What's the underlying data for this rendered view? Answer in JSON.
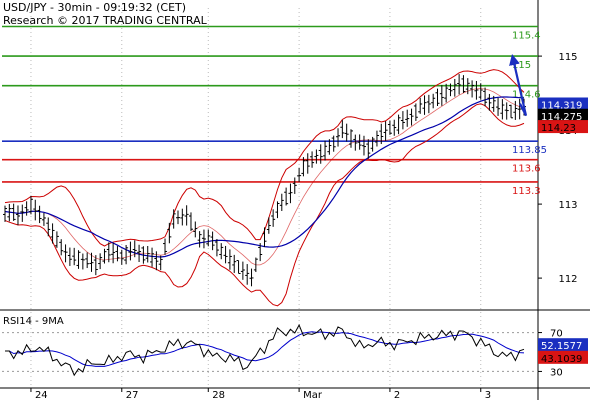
{
  "header": {
    "title": "USD/JPY - 30min - 09:19:32 (CET)",
    "copyright": "Research © 2017 TRADING CENTRAL"
  },
  "rsi_panel": {
    "label": "RSI14 - 9MA"
  },
  "chart_data": [
    {
      "type": "candlestick",
      "instrument": "USD/JPY",
      "timeframe": "30min",
      "ylim": [
        111.65,
        115.65
      ],
      "y_ticks": [
        112,
        113,
        114,
        115
      ],
      "x_tick_labels": [
        "24",
        "27",
        "28",
        "Mar",
        "2",
        "3"
      ],
      "levels": [
        {
          "label": "115.4",
          "value": 115.4,
          "color": "#2c9a1c"
        },
        {
          "label": "115",
          "value": 115.0,
          "color": "#2c9a1c"
        },
        {
          "label": "114.6",
          "value": 114.6,
          "color": "#2c9a1c"
        },
        {
          "label": "113.85",
          "value": 113.85,
          "color": "#1a2fc0"
        },
        {
          "label": "113.6",
          "value": 113.6,
          "color": "#d91414"
        },
        {
          "label": "113.3",
          "value": 113.3,
          "color": "#d91414"
        }
      ],
      "price_tags": [
        {
          "label": "114.319",
          "value": 114.319,
          "bg": "#1a2fc0",
          "fg": "#ffffff"
        },
        {
          "label": "114.275",
          "value": 114.275,
          "bg": "#000000",
          "fg": "#ffffff"
        },
        {
          "label": "114.23",
          "value": 114.23,
          "bg": "#d91414",
          "fg": "#000000"
        }
      ],
      "price_path": [
        [
          0,
          112.9
        ],
        [
          3,
          112.85
        ],
        [
          6,
          112.98
        ],
        [
          9,
          112.8
        ],
        [
          12,
          112.5
        ],
        [
          15,
          112.28
        ],
        [
          18,
          112.25
        ],
        [
          21,
          112.18
        ],
        [
          24,
          112.35
        ],
        [
          27,
          112.3
        ],
        [
          30,
          112.38
        ],
        [
          33,
          112.3
        ],
        [
          36,
          112.22
        ],
        [
          39,
          112.8
        ],
        [
          42,
          112.85
        ],
        [
          45,
          112.55
        ],
        [
          48,
          112.5
        ],
        [
          51,
          112.3
        ],
        [
          54,
          112.15
        ],
        [
          57,
          112.0
        ],
        [
          60,
          112.55
        ],
        [
          63,
          112.95
        ],
        [
          66,
          113.15
        ],
        [
          69,
          113.5
        ],
        [
          72,
          113.65
        ],
        [
          75,
          113.75
        ],
        [
          78,
          114.0
        ],
        [
          81,
          113.85
        ],
        [
          84,
          113.75
        ],
        [
          87,
          113.95
        ],
        [
          90,
          114.05
        ],
        [
          93,
          114.15
        ],
        [
          96,
          114.3
        ],
        [
          99,
          114.4
        ],
        [
          102,
          114.5
        ],
        [
          105,
          114.62
        ],
        [
          108,
          114.58
        ],
        [
          111,
          114.45
        ],
        [
          114,
          114.3
        ],
        [
          117,
          114.25
        ],
        [
          120,
          114.3
        ]
      ],
      "forecast_arrow": [
        [
          114.25,
          114.97
        ]
      ],
      "series": [
        {
          "name": "",
          "color": "#0000aa",
          "kind": "moving-average"
        },
        {
          "name": "",
          "color": "#cc0000",
          "kind": "bollinger-bands"
        }
      ]
    },
    {
      "type": "line",
      "ylim": [
        15,
        85
      ],
      "y_ticks": [
        30,
        70
      ],
      "tags": [
        {
          "label": "52.1577",
          "value": 52.16,
          "bg": "#1a2fc0",
          "fg": "#ffffff"
        },
        {
          "label": "43.1039",
          "value": 43.1,
          "bg": "#d91414",
          "fg": "#000000"
        }
      ],
      "rsi": [
        [
          0,
          48
        ],
        [
          4,
          50
        ],
        [
          8,
          55
        ],
        [
          12,
          42
        ],
        [
          16,
          30
        ],
        [
          20,
          38
        ],
        [
          24,
          40
        ],
        [
          28,
          48
        ],
        [
          32,
          45
        ],
        [
          36,
          52
        ],
        [
          40,
          60
        ],
        [
          44,
          58
        ],
        [
          48,
          46
        ],
        [
          52,
          44
        ],
        [
          56,
          35
        ],
        [
          60,
          55
        ],
        [
          63,
          70
        ],
        [
          66,
          72
        ],
        [
          70,
          70
        ],
        [
          74,
          68
        ],
        [
          78,
          72
        ],
        [
          82,
          55
        ],
        [
          86,
          60
        ],
        [
          90,
          58
        ],
        [
          94,
          62
        ],
        [
          98,
          66
        ],
        [
          102,
          68
        ],
        [
          106,
          70
        ],
        [
          110,
          60
        ],
        [
          114,
          48
        ],
        [
          117,
          45
        ],
        [
          120,
          53
        ]
      ],
      "series": [
        {
          "name": "",
          "color": "#000000"
        },
        {
          "name": "",
          "color": "#0000cc"
        }
      ]
    }
  ]
}
